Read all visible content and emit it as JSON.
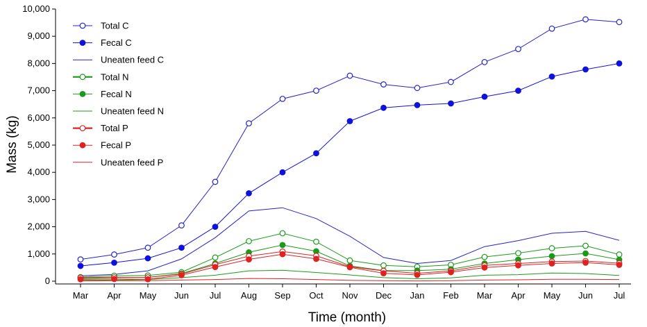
{
  "chart_data": {
    "type": "line",
    "title": "",
    "xlabel": "Time (month)",
    "ylabel": "Mass (kg)",
    "ylim": [
      0,
      10000
    ],
    "yticks": [
      0,
      1000,
      2000,
      3000,
      4000,
      5000,
      6000,
      7000,
      8000,
      9000,
      10000
    ],
    "ytick_labels": [
      "0",
      "1,000",
      "2,000",
      "3,000",
      "4,000",
      "5,000",
      "6,000",
      "7,000",
      "8,000",
      "9,000",
      "10,000"
    ],
    "categories": [
      "Mar",
      "Apr",
      "May",
      "Jun",
      "Jul",
      "Aug",
      "Sep",
      "Oct",
      "Nov",
      "Dec",
      "Jan",
      "Feb",
      "Mar",
      "Apr",
      "May",
      "Jun",
      "Jul"
    ],
    "legend_position": "top-left",
    "grid": false,
    "series": [
      {
        "name": "Total C",
        "color": "#2222cc",
        "marker": "open",
        "width": 1,
        "values": [
          800,
          980,
          1230,
          2050,
          3650,
          5800,
          6700,
          7000,
          7550,
          7230,
          7100,
          7320,
          8050,
          8530,
          9280,
          9620,
          9520
        ]
      },
      {
        "name": "Fecal C",
        "color": "#1111dd",
        "marker": "filled",
        "width": 1,
        "values": [
          560,
          680,
          840,
          1230,
          2000,
          3230,
          4000,
          4700,
          5880,
          6370,
          6470,
          6530,
          6780,
          7000,
          7520,
          7780,
          8000
        ]
      },
      {
        "name": "Uneaten feed C",
        "color": "#2222cc",
        "marker": "none",
        "width": 1,
        "values": [
          200,
          250,
          380,
          820,
          1600,
          2580,
          2700,
          2300,
          1650,
          870,
          650,
          760,
          1270,
          1490,
          1760,
          1830,
          1500
        ]
      },
      {
        "name": "Total N",
        "color": "#1a9a1a",
        "marker": "open",
        "width": 1,
        "values": [
          150,
          200,
          210,
          330,
          870,
          1470,
          1760,
          1450,
          760,
          580,
          530,
          600,
          890,
          1030,
          1210,
          1300,
          980
        ]
      },
      {
        "name": "Fecal N",
        "color": "#1a9a1a",
        "marker": "filled",
        "width": 1,
        "values": [
          100,
          130,
          140,
          280,
          650,
          1060,
          1330,
          1100,
          560,
          390,
          390,
          440,
          650,
          790,
          920,
          1020,
          790
        ]
      },
      {
        "name": "Uneaten feed N",
        "color": "#1a9a1a",
        "marker": "none",
        "width": 1,
        "values": [
          30,
          40,
          60,
          130,
          220,
          380,
          400,
          320,
          230,
          130,
          90,
          120,
          220,
          240,
          300,
          280,
          210
        ]
      },
      {
        "name": "Total P",
        "color": "#dd2222",
        "marker": "open",
        "width": 1,
        "values": [
          130,
          140,
          140,
          260,
          610,
          920,
          1090,
          930,
          530,
          380,
          290,
          380,
          580,
          650,
          720,
          740,
          660
        ]
      },
      {
        "name": "Fecal P",
        "color": "#dd2222",
        "marker": "filled",
        "width": 1,
        "values": [
          70,
          80,
          70,
          220,
          520,
          800,
          990,
          820,
          510,
          290,
          230,
          330,
          500,
          580,
          650,
          680,
          600
        ]
      },
      {
        "name": "Uneaten feed P",
        "color": "#dd2222",
        "marker": "none",
        "width": 1,
        "values": [
          10,
          20,
          20,
          40,
          60,
          100,
          90,
          60,
          30,
          20,
          10,
          20,
          40,
          50,
          70,
          70,
          60
        ]
      }
    ]
  }
}
